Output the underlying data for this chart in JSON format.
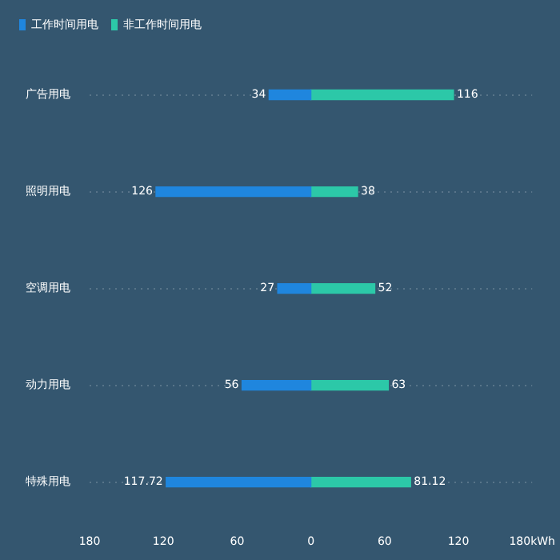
{
  "chart_data": {
    "type": "bar",
    "orientation": "horizontal",
    "categories": [
      "广告用电",
      "照明用电",
      "空调用电",
      "动力用电",
      "特殊用电"
    ],
    "series": [
      {
        "name": "工作时间用电",
        "color": "#1f86de",
        "values": [
          34,
          126,
          27,
          56,
          117.72
        ],
        "base": [
          -34,
          -126,
          -27,
          -56,
          -117.72
        ],
        "data_labels": true
      },
      {
        "name": "非工作时间用电",
        "color": "#2cc8a8",
        "values": [
          116,
          38,
          52,
          63,
          81.12
        ],
        "data_labels": true
      }
    ],
    "xlim": [
      -180,
      180
    ],
    "xticks": [
      {
        "value": -180,
        "label": "180"
      },
      {
        "value": -120,
        "label": "120"
      },
      {
        "value": -60,
        "label": "60"
      },
      0,
      60,
      120,
      {
        "value": 180,
        "label": "180kWh"
      }
    ],
    "grid": "y",
    "legend": "top left"
  }
}
